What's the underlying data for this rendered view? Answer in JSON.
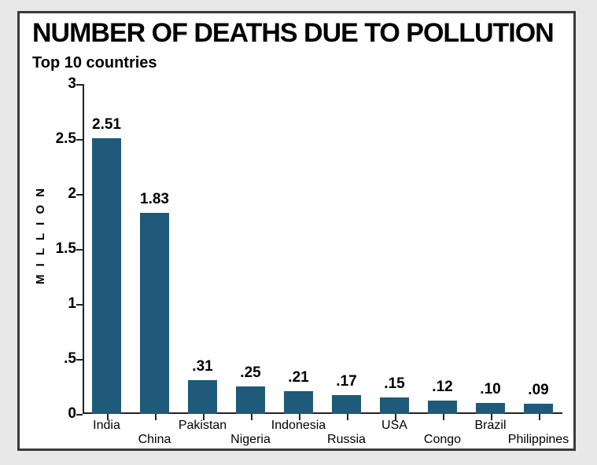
{
  "title": "NUMBER OF DEATHS DUE TO POLLUTION",
  "subtitle": "Top 10 countries",
  "y_axis_title": "M I L L I O N",
  "chart": {
    "type": "bar",
    "categories": [
      "India",
      "China",
      "Pakistan",
      "Nigeria",
      "Indonesia",
      "Russia",
      "USA",
      "Congo",
      "Brazil",
      "Philippines"
    ],
    "values": [
      2.51,
      1.83,
      0.31,
      0.25,
      0.21,
      0.17,
      0.15,
      0.12,
      0.1,
      0.09
    ],
    "value_labels": [
      "2.51",
      "1.83",
      ".31",
      ".25",
      ".21",
      ".17",
      ".15",
      ".12",
      ".10",
      ".09"
    ],
    "bar_color": "#1f5a7a",
    "ylim": [
      0,
      3
    ],
    "ytick_step": 0.5,
    "ytick_labels": [
      "0",
      ".5",
      "1",
      "1.5",
      "2",
      "2.5",
      "3"
    ],
    "label_row": [
      0,
      1,
      0,
      1,
      0,
      1,
      0,
      1,
      0,
      1
    ],
    "background_color": "#ffffff",
    "axis_color": "#222222",
    "title_fontsize": 34,
    "subtitle_fontsize": 20,
    "value_fontsize": 19,
    "ytick_fontsize": 19,
    "xtick_fontsize": 16,
    "yaxis_title_fontsize": 15,
    "bar_width_ratio": 0.62
  }
}
